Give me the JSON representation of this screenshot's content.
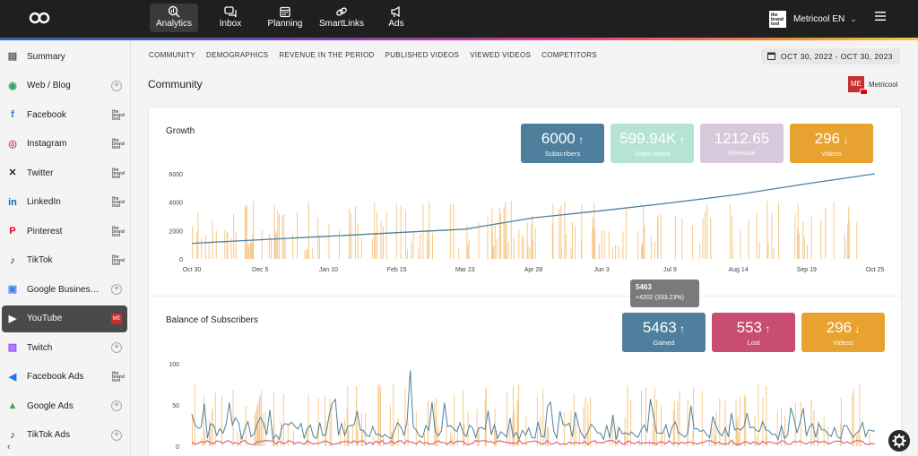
{
  "topnav": {
    "items": [
      {
        "label": "Analytics",
        "icon": "analytics-icon",
        "active": true
      },
      {
        "label": "Inbox",
        "icon": "inbox-icon"
      },
      {
        "label": "Planning",
        "icon": "calendar-icon"
      },
      {
        "label": "SmartLinks",
        "icon": "link-icon"
      },
      {
        "label": "Ads",
        "icon": "megaphone-icon"
      }
    ],
    "account": {
      "name": "Metricool EN",
      "logo_text": "the brand tool"
    }
  },
  "sidebar": {
    "items": [
      {
        "label": "Summary",
        "icon": "summary-icon",
        "color": "#555555",
        "right": "none"
      },
      {
        "label": "Web / Blog",
        "icon": "rss-icon",
        "color": "#38a169",
        "right": "plus"
      },
      {
        "label": "Facebook",
        "icon": "facebook-icon",
        "color": "#1877f2",
        "right": "brand"
      },
      {
        "label": "Instagram",
        "icon": "instagram-icon",
        "color": "#d53f8c",
        "right": "brand"
      },
      {
        "label": "Twitter",
        "icon": "x-icon",
        "color": "#222222",
        "right": "brand"
      },
      {
        "label": "LinkedIn",
        "icon": "linkedin-icon",
        "color": "#0a66c2",
        "right": "brand"
      },
      {
        "label": "Pinterest",
        "icon": "pinterest-icon",
        "color": "#e60023",
        "right": "brand"
      },
      {
        "label": "TikTok",
        "icon": "tiktok-icon",
        "color": "#111111",
        "right": "brand"
      },
      {
        "label": "Google Business Profile",
        "icon": "google-business-icon",
        "color": "#4285f4",
        "right": "plus"
      },
      {
        "label": "YouTube",
        "icon": "youtube-icon",
        "color": "#ffffff",
        "right": "me",
        "active": true
      },
      {
        "label": "Twitch",
        "icon": "twitch-icon",
        "color": "#9146ff",
        "right": "plus"
      },
      {
        "label": "Facebook Ads",
        "icon": "megaphone-icon",
        "color": "#1877f2",
        "right": "brand"
      },
      {
        "label": "Google Ads",
        "icon": "google-ads-icon",
        "color": "#34a853",
        "right": "plus"
      },
      {
        "label": "TikTok Ads",
        "icon": "tiktok-icon",
        "color": "#111111",
        "right": "plus"
      }
    ],
    "brand_badge": "the brand tool",
    "me_badge": "ME"
  },
  "tabs": [
    "COMMUNITY",
    "DEMOGRAPHICS",
    "REVENUE IN THE PERIOD",
    "PUBLISHED VIDEOS",
    "VIEWED VIDEOS",
    "COMPETITORS"
  ],
  "date_range": "OCT 30, 2022 - OCT 30, 2023",
  "section_title": "Community",
  "brand": {
    "name": "Metricool",
    "logo_text": "ME"
  },
  "growth": {
    "title": "Growth",
    "kpis": [
      {
        "value": "6000",
        "label": "Subscribers",
        "trend": "up",
        "color": "#4e809d"
      },
      {
        "value": "599.94K",
        "label": "Video views",
        "trend": "up",
        "color": "#b5e3d6"
      },
      {
        "value": "1212.65",
        "label": "Revenue",
        "trend": "none",
        "color": "#d8c8dc"
      },
      {
        "value": "296",
        "label": "Videos",
        "trend": "down",
        "color": "#e8a22f"
      }
    ]
  },
  "balance": {
    "title": "Balance of Subscribers",
    "kpis": [
      {
        "value": "5463",
        "label": "Gained",
        "trend": "up",
        "color": "#4e809d"
      },
      {
        "value": "553",
        "label": "Lost",
        "trend": "up",
        "color": "#c94d72"
      },
      {
        "value": "296",
        "label": "Videos",
        "trend": "down",
        "color": "#e8a22f"
      }
    ]
  },
  "tooltip": {
    "value": "5463",
    "detail": "+4202 (333.23%)"
  },
  "chart_data": [
    {
      "type": "line",
      "title": "Growth",
      "x": [
        "Oct 30",
        "Dec 5",
        "Jan 10",
        "Feb 15",
        "Mar 23",
        "Apr 28",
        "Jun 3",
        "Jul 9",
        "Aug 14",
        "Sep 19",
        "Oct 25"
      ],
      "yticks": [
        0,
        2000,
        4000,
        6000
      ],
      "ylim": [
        0,
        6000
      ],
      "series": [
        {
          "values": [
            1100,
            1350,
            1600,
            1850,
            2100,
            2900,
            3400,
            3950,
            4550,
            5300,
            6000
          ],
          "color": "#4e809d"
        }
      ],
      "bars_color": "#f5c98a",
      "grid": false
    },
    {
      "type": "line",
      "title": "Balance of Subscribers",
      "yticks": [
        0,
        50,
        100
      ],
      "ylim": [
        0,
        100
      ],
      "series": [
        {
          "name": "Gained",
          "color": "#4e809d"
        },
        {
          "name": "Lost",
          "color": "#c94d72"
        }
      ],
      "bars_color": "#f5c98a",
      "grid": false
    }
  ]
}
